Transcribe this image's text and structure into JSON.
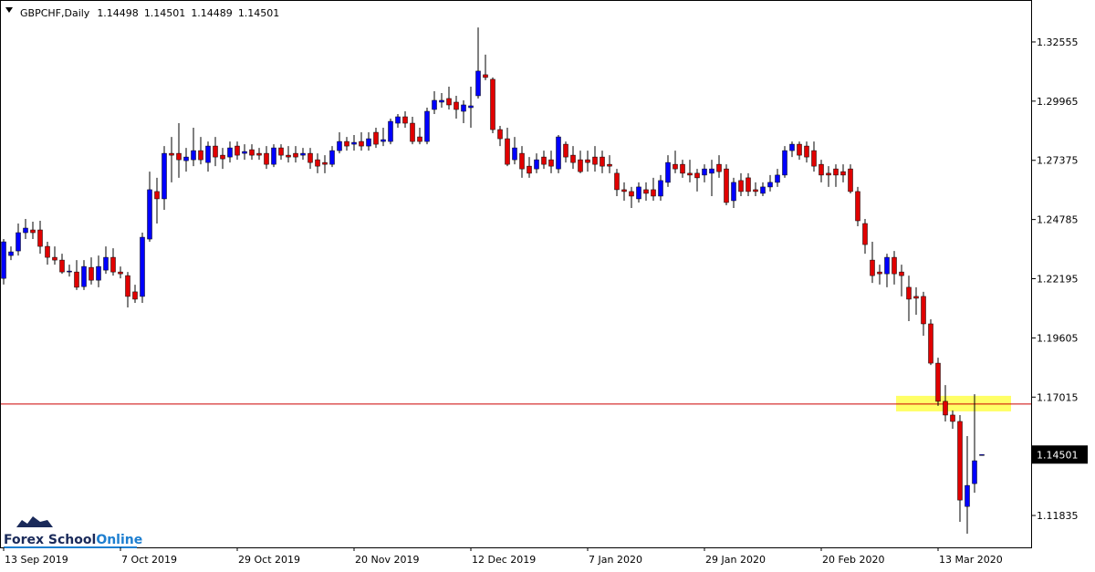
{
  "chart_data": {
    "type": "candlestick",
    "symbol": "GBPCHF,Daily",
    "categories": [
      "13 Sep 2019",
      null,
      null,
      null,
      null,
      null,
      null,
      null,
      null,
      null,
      null,
      null,
      null,
      null,
      null,
      null,
      "7 Oct 2019",
      null,
      null,
      null,
      null,
      null,
      null,
      null,
      null,
      null,
      null,
      null,
      null,
      null,
      null,
      null,
      "29 Oct 2019",
      null,
      null,
      null,
      null,
      null,
      null,
      null,
      null,
      null,
      null,
      null,
      null,
      null,
      null,
      null,
      "20 Nov 2019",
      null,
      null,
      null,
      null,
      null,
      null,
      null,
      null,
      null,
      null,
      null,
      null,
      null,
      null,
      null,
      "12 Dec 2019",
      null,
      null,
      null,
      null,
      null,
      null,
      null,
      null,
      null,
      null,
      null,
      null,
      null,
      null,
      null,
      "7 Jan 2020",
      null,
      null,
      null,
      null,
      null,
      null,
      null,
      null,
      null,
      null,
      null,
      null,
      null,
      null,
      null,
      "29 Jan 2020",
      null,
      null,
      null,
      null,
      null,
      null,
      null,
      null,
      null,
      null,
      null,
      null,
      null,
      null,
      null,
      "20 Feb 2020",
      null,
      null,
      null,
      null,
      null,
      null,
      null,
      null,
      null,
      null,
      null,
      null,
      null,
      null,
      null,
      "13 Mar 2020",
      null,
      null,
      null,
      null,
      null,
      null
    ],
    "candles": [
      [
        1.2221,
        1.2393,
        1.2194,
        1.2381
      ],
      [
        1.2321,
        1.2361,
        1.2301,
        1.2337
      ],
      [
        1.2341,
        1.2461,
        1.2321,
        1.2421
      ],
      [
        1.2421,
        1.2481,
        1.2393,
        1.2441
      ],
      [
        1.2433,
        1.2469,
        1.2393,
        1.2421
      ],
      [
        1.2433,
        1.2473,
        1.2329,
        1.2361
      ],
      [
        1.2361,
        1.2381,
        1.2281,
        1.2313
      ],
      [
        1.2313,
        1.2361,
        1.2281,
        1.2301
      ],
      [
        1.2301,
        1.2329,
        1.2241,
        1.2249
      ],
      [
        1.2249,
        1.2281,
        1.2229,
        1.2253
      ],
      [
        1.2249,
        1.2301,
        1.217,
        1.2182
      ],
      [
        1.2185,
        1.2301,
        1.217,
        1.2273
      ],
      [
        1.2269,
        1.2313,
        1.2194,
        1.2213
      ],
      [
        1.2213,
        1.2321,
        1.2182,
        1.2273
      ],
      [
        1.2257,
        1.2361,
        1.2241,
        1.2313
      ],
      [
        1.2313,
        1.2353,
        1.2233,
        1.2249
      ],
      [
        1.2249,
        1.2273,
        1.2221,
        1.2241
      ],
      [
        1.2233,
        1.2249,
        1.2094,
        1.2142
      ],
      [
        1.2162,
        1.2193,
        1.2114,
        1.213
      ],
      [
        1.2142,
        1.2421,
        1.2114,
        1.2401
      ],
      [
        1.2393,
        1.2688,
        1.2381,
        1.2609
      ],
      [
        1.2601,
        1.2661,
        1.2461,
        1.2569
      ],
      [
        1.2569,
        1.28,
        1.2521,
        1.2768
      ],
      [
        1.2768,
        1.284,
        1.2641,
        1.276
      ],
      [
        1.2768,
        1.29,
        1.2661,
        1.274
      ],
      [
        1.2736,
        1.2792,
        1.2688,
        1.2752
      ],
      [
        1.274,
        1.288,
        1.2712,
        1.278
      ],
      [
        1.278,
        1.284,
        1.272,
        1.274
      ],
      [
        1.2728,
        1.282,
        1.2688,
        1.28
      ],
      [
        1.28,
        1.284,
        1.2712,
        1.2752
      ],
      [
        1.276,
        1.2792,
        1.27,
        1.2744
      ],
      [
        1.2752,
        1.282,
        1.2728,
        1.2792
      ],
      [
        1.28,
        1.282,
        1.274,
        1.276
      ],
      [
        1.2768,
        1.2808,
        1.274,
        1.2776
      ],
      [
        1.2784,
        1.2808,
        1.274,
        1.276
      ],
      [
        1.2768,
        1.2792,
        1.274,
        1.276
      ],
      [
        1.2768,
        1.28,
        1.27,
        1.272
      ],
      [
        1.272,
        1.2808,
        1.2708,
        1.2792
      ],
      [
        1.2792,
        1.2808,
        1.274,
        1.276
      ],
      [
        1.276,
        1.28,
        1.2728,
        1.2752
      ],
      [
        1.2768,
        1.28,
        1.2728,
        1.2752
      ],
      [
        1.276,
        1.2792,
        1.274,
        1.2768
      ],
      [
        1.2768,
        1.2792,
        1.27,
        1.2728
      ],
      [
        1.274,
        1.2768,
        1.2681,
        1.2712
      ],
      [
        1.2728,
        1.276,
        1.2681,
        1.272
      ],
      [
        1.272,
        1.28,
        1.2708,
        1.278
      ],
      [
        1.278,
        1.286,
        1.2768,
        1.282
      ],
      [
        1.282,
        1.284,
        1.278,
        1.28
      ],
      [
        1.2808,
        1.2848,
        1.278,
        1.2816
      ],
      [
        1.282,
        1.286,
        1.278,
        1.28
      ],
      [
        1.28,
        1.286,
        1.278,
        1.2832
      ],
      [
        1.286,
        1.288,
        1.2792,
        1.2808
      ],
      [
        1.282,
        1.288,
        1.28,
        1.2828
      ],
      [
        1.282,
        1.292,
        1.2808,
        1.2908
      ],
      [
        1.29,
        1.294,
        1.288,
        1.2928
      ],
      [
        1.2928,
        1.2952,
        1.288,
        1.29
      ],
      [
        1.29,
        1.2928,
        1.2808,
        1.282
      ],
      [
        1.284,
        1.288,
        1.2808,
        1.282
      ],
      [
        1.282,
        1.2968,
        1.2808,
        1.2952
      ],
      [
        1.296,
        1.304,
        1.294,
        1.3
      ],
      [
        1.2992,
        1.3032,
        1.2968,
        1.3
      ],
      [
        1.3008,
        1.306,
        1.296,
        1.298
      ],
      [
        1.2992,
        1.302,
        1.292,
        1.296
      ],
      [
        1.2952,
        1.3,
        1.29,
        1.298
      ],
      [
        1.2968,
        1.306,
        1.288,
        1.2976
      ],
      [
        1.302,
        1.3319,
        1.3008,
        1.3128
      ],
      [
        1.3112,
        1.32,
        1.3088,
        1.31
      ],
      [
        1.3092,
        1.31,
        1.2856,
        1.2872
      ],
      [
        1.2872,
        1.2888,
        1.28,
        1.2832
      ],
      [
        1.2832,
        1.288,
        1.2712,
        1.272
      ],
      [
        1.274,
        1.284,
        1.272,
        1.2792
      ],
      [
        1.2768,
        1.28,
        1.2661,
        1.27
      ],
      [
        1.2712,
        1.2752,
        1.2661,
        1.2681
      ],
      [
        1.27,
        1.2768,
        1.2681,
        1.274
      ],
      [
        1.2752,
        1.278,
        1.27,
        1.272
      ],
      [
        1.274,
        1.278,
        1.2681,
        1.2712
      ],
      [
        1.27,
        1.2848,
        1.2681,
        1.284
      ],
      [
        1.2808,
        1.282,
        1.2728,
        1.2752
      ],
      [
        1.276,
        1.28,
        1.27,
        1.2728
      ],
      [
        1.274,
        1.278,
        1.2681,
        1.2688
      ],
      [
        1.274,
        1.278,
        1.2688,
        1.2728
      ],
      [
        1.2752,
        1.28,
        1.2688,
        1.272
      ],
      [
        1.2752,
        1.278,
        1.2681,
        1.2712
      ],
      [
        1.272,
        1.276,
        1.2681,
        1.2712
      ],
      [
        1.2681,
        1.27,
        1.2581,
        1.2609
      ],
      [
        1.2609,
        1.2641,
        1.2561,
        1.2601
      ],
      [
        1.2601,
        1.2621,
        1.2529,
        1.2581
      ],
      [
        1.2569,
        1.2641,
        1.2553,
        1.2621
      ],
      [
        1.2609,
        1.2641,
        1.2561,
        1.2593
      ],
      [
        1.2609,
        1.2661,
        1.2561,
        1.2581
      ],
      [
        1.2581,
        1.2673,
        1.2561,
        1.2649
      ],
      [
        1.2641,
        1.276,
        1.2621,
        1.2728
      ],
      [
        1.272,
        1.278,
        1.2681,
        1.27
      ],
      [
        1.272,
        1.274,
        1.2661,
        1.2681
      ],
      [
        1.2681,
        1.274,
        1.2641,
        1.2673
      ],
      [
        1.2681,
        1.27,
        1.2601,
        1.2661
      ],
      [
        1.2673,
        1.272,
        1.2641,
        1.27
      ],
      [
        1.2681,
        1.274,
        1.2581,
        1.27
      ],
      [
        1.272,
        1.276,
        1.2661,
        1.2688
      ],
      [
        1.27,
        1.272,
        1.2541,
        1.2553
      ],
      [
        1.2561,
        1.2661,
        1.2529,
        1.2641
      ],
      [
        1.2649,
        1.2681,
        1.2581,
        1.2601
      ],
      [
        1.2661,
        1.2681,
        1.2581,
        1.2601
      ],
      [
        1.2609,
        1.2641,
        1.2581,
        1.2601
      ],
      [
        1.2593,
        1.2641,
        1.2581,
        1.2621
      ],
      [
        1.2621,
        1.2673,
        1.2601,
        1.2641
      ],
      [
        1.2641,
        1.27,
        1.2621,
        1.2673
      ],
      [
        1.2673,
        1.28,
        1.2661,
        1.278
      ],
      [
        1.278,
        1.282,
        1.2752,
        1.2808
      ],
      [
        1.2808,
        1.282,
        1.274,
        1.276
      ],
      [
        1.28,
        1.282,
        1.2728,
        1.2752
      ],
      [
        1.278,
        1.282,
        1.2688,
        1.2712
      ],
      [
        1.272,
        1.274,
        1.2641,
        1.2673
      ],
      [
        1.2681,
        1.2712,
        1.2621,
        1.2673
      ],
      [
        1.27,
        1.272,
        1.2621,
        1.2673
      ],
      [
        1.2688,
        1.272,
        1.2641,
        1.2673
      ],
      [
        1.27,
        1.272,
        1.2593,
        1.2601
      ],
      [
        1.2601,
        1.2621,
        1.2449,
        1.2473
      ],
      [
        1.2461,
        1.2481,
        1.2329,
        1.2369
      ],
      [
        1.2301,
        1.2381,
        1.2201,
        1.2233
      ],
      [
        1.2249,
        1.2281,
        1.2194,
        1.2241
      ],
      [
        1.2241,
        1.2329,
        1.2182,
        1.2313
      ],
      [
        1.2313,
        1.2341,
        1.2194,
        1.2241
      ],
      [
        1.2249,
        1.2281,
        1.2142,
        1.2233
      ],
      [
        1.2182,
        1.2233,
        1.2034,
        1.213
      ],
      [
        1.2142,
        1.2182,
        1.2062,
        1.2134
      ],
      [
        1.2142,
        1.2162,
        1.197,
        1.2022
      ],
      [
        1.2022,
        1.2042,
        1.1842,
        1.185
      ],
      [
        1.185,
        1.1874,
        1.1663,
        1.1683
      ],
      [
        1.1683,
        1.1754,
        1.1595,
        1.1623
      ],
      [
        1.1623,
        1.1643,
        1.1563,
        1.1595
      ],
      [
        1.1595,
        1.1623,
        1.1156,
        1.1251
      ],
      [
        1.1223,
        1.1531,
        1.1104,
        1.1315
      ],
      [
        1.1323,
        1.1714,
        1.1283,
        1.1423
      ],
      [
        1.14498,
        1.14501,
        1.14489,
        1.14501
      ]
    ],
    "up_color": "#0000ff",
    "down_color": "#e00000",
    "ylim": [
      1.1044,
      1.3439
    ],
    "yticks": [
      1.32555,
      1.29965,
      1.27375,
      1.24785,
      1.22195,
      1.19605,
      1.17015,
      1.11835
    ],
    "hline": 1.1671,
    "hline_color": "#cc0000",
    "zone": [
      1.1639,
      1.1707
    ],
    "zone_color": "#ffff66",
    "watermark": {
      "part1": "Forex School",
      "part2": "Online"
    }
  }
}
